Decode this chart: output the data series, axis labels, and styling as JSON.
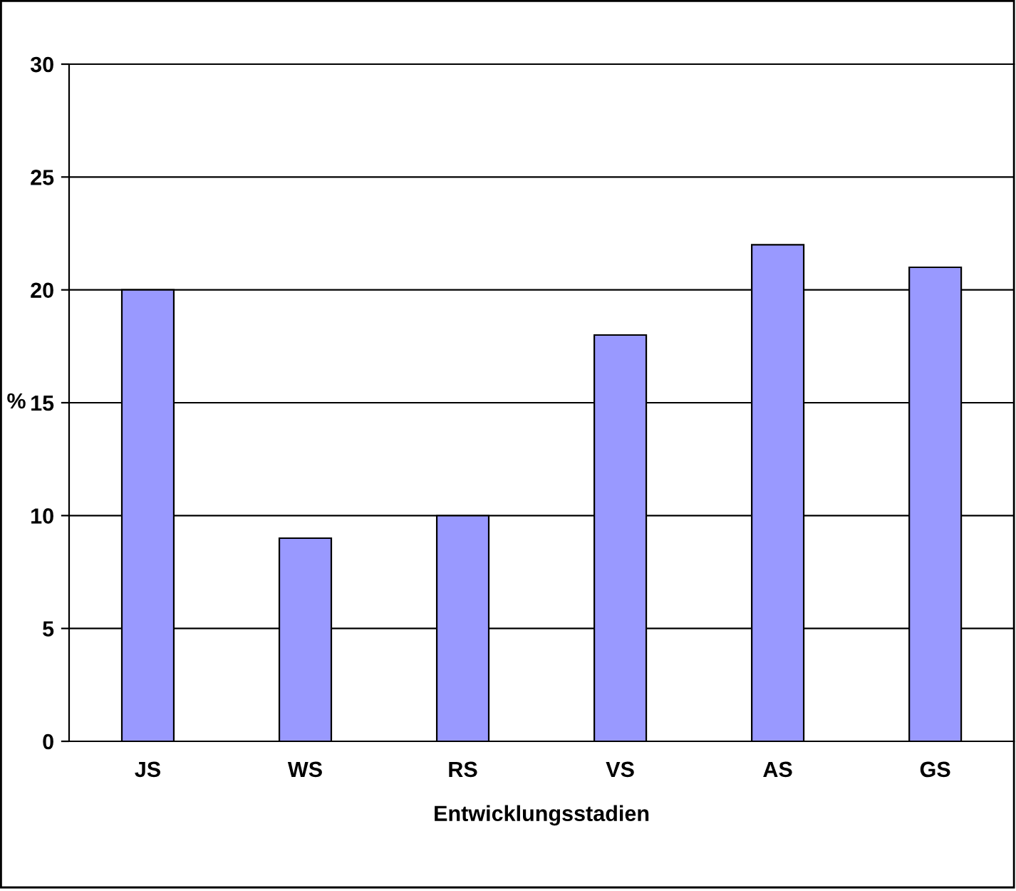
{
  "chart_data": {
    "type": "bar",
    "xlabel": "Entwicklungsstadien",
    "ylabel": "%",
    "categories": [
      "JS",
      "WS",
      "RS",
      "VS",
      "AS",
      "GS"
    ],
    "values": [
      20,
      9,
      10,
      18,
      22,
      21
    ],
    "color": "#9999ff",
    "ylim": [
      0,
      30
    ],
    "yticks": [
      0,
      5,
      10,
      15,
      20,
      25,
      30
    ],
    "grid": "y",
    "legend": false
  }
}
